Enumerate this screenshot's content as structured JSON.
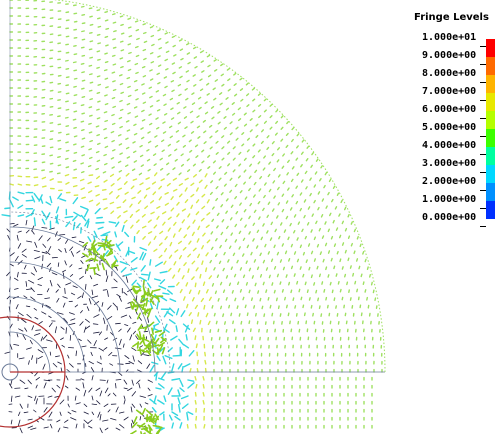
{
  "legend": {
    "title": "Fringe Levels",
    "levels": [
      "1.000e+01",
      "9.000e+00",
      "8.000e+00",
      "7.000e+00",
      "6.000e+00",
      "5.000e+00",
      "4.000e+00",
      "3.000e+00",
      "2.000e+00",
      "1.000e+00",
      "0.000e+00"
    ],
    "colors": [
      "#ff0000",
      "#ff6a00",
      "#ffb400",
      "#e8e800",
      "#b4ff00",
      "#3cff00",
      "#00ffa0",
      "#00d8ff",
      "#0090ff",
      "#0030ff"
    ]
  },
  "plot": {
    "colors": {
      "outer_vectors": "#9ee060",
      "mid_vectors": "#d6e84a",
      "inner_vectors": "#33d6e0",
      "core_vectors": "#1a1a3a",
      "hotspot": "#8acc1e",
      "red_circle": "#b33030",
      "gray_circle": "#6a7a98"
    }
  }
}
